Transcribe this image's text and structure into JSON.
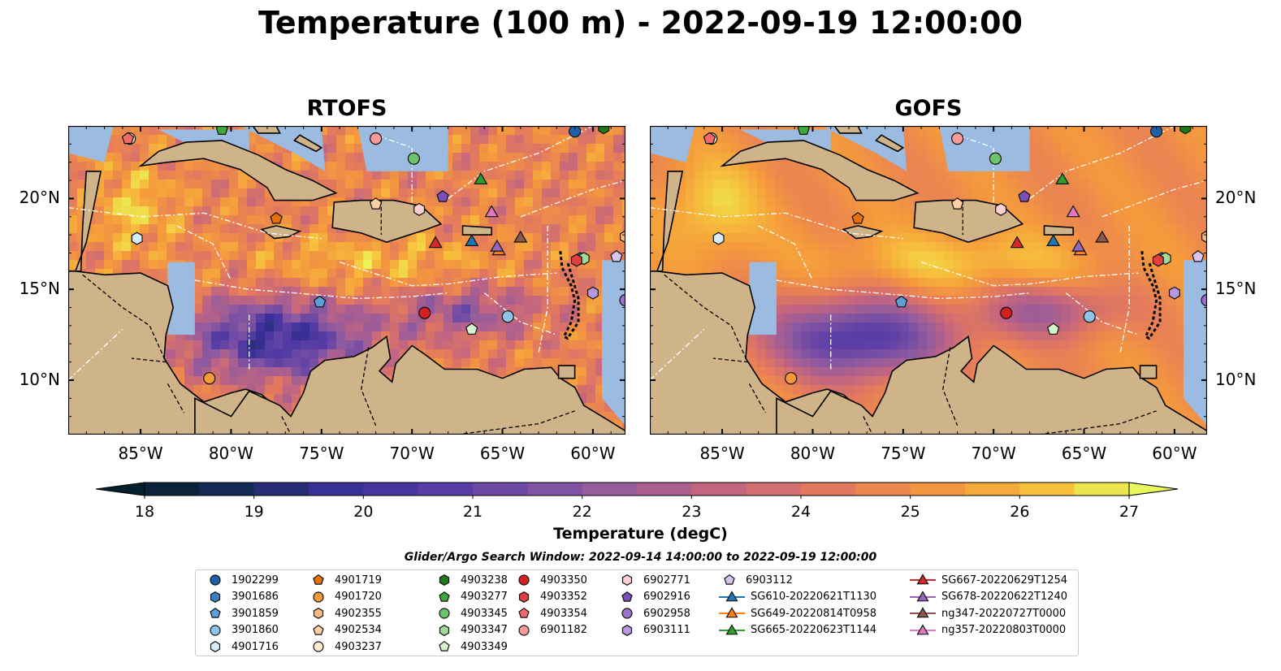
{
  "title": "Temperature (100 m) - 2022-09-19 12:00:00",
  "panels": [
    {
      "title": "RTOFS",
      "variant": "rtofs"
    },
    {
      "title": "GOFS",
      "variant": "gofs"
    }
  ],
  "map_extent": {
    "lon_min": -89,
    "lon_max": -58.2,
    "lat_min": 7,
    "lat_max": 24
  },
  "x_ticks": [
    {
      "value": -85,
      "label": "85°W"
    },
    {
      "value": -80,
      "label": "80°W"
    },
    {
      "value": -75,
      "label": "75°W"
    },
    {
      "value": -70,
      "label": "70°W"
    },
    {
      "value": -65,
      "label": "65°W"
    },
    {
      "value": -60,
      "label": "60°W"
    }
  ],
  "y_ticks": [
    {
      "value": 20,
      "label": "20°N"
    },
    {
      "value": 15,
      "label": "15°N"
    },
    {
      "value": 10,
      "label": "10°N"
    }
  ],
  "colorbar": {
    "label": "Temperature (degC)",
    "min": 18,
    "max": 27,
    "extend": "both",
    "tick_labels": [
      "18",
      "19",
      "20",
      "21",
      "22",
      "23",
      "24",
      "25",
      "26",
      "27"
    ]
  },
  "search_window": "Glider/Argo Search Window: 2022-09-14 14:00:00 to 2022-09-19 12:00:00",
  "legend": [
    {
      "label": "1902299",
      "marker": "circle",
      "color": "#1f5fa8"
    },
    {
      "label": "3901686",
      "marker": "hexagon",
      "color": "#3a7fc0"
    },
    {
      "label": "3901859",
      "marker": "pentagon",
      "color": "#5a9fd8"
    },
    {
      "label": "3901860",
      "marker": "circle",
      "color": "#8fc3e8"
    },
    {
      "label": "4901716",
      "marker": "hexagon",
      "color": "#d6ecf8"
    },
    {
      "label": "4901719",
      "marker": "pentagon",
      "color": "#e8700a"
    },
    {
      "label": "4901720",
      "marker": "circle",
      "color": "#f59a3c"
    },
    {
      "label": "4902355",
      "marker": "hexagon",
      "color": "#f9bc80"
    },
    {
      "label": "4902534",
      "marker": "pentagon",
      "color": "#fcd0a0"
    },
    {
      "label": "4903237",
      "marker": "circle",
      "color": "#fde8cc"
    },
    {
      "label": "4903238",
      "marker": "hexagon",
      "color": "#1e7a1e"
    },
    {
      "label": "4903277",
      "marker": "pentagon",
      "color": "#3ea83e"
    },
    {
      "label": "4903345",
      "marker": "circle",
      "color": "#6cc46c"
    },
    {
      "label": "4903347",
      "marker": "hexagon",
      "color": "#a0dc98"
    },
    {
      "label": "4903349",
      "marker": "pentagon",
      "color": "#d4f4cc"
    },
    {
      "label": "4903350",
      "marker": "circle",
      "color": "#d62020"
    },
    {
      "label": "4903352",
      "marker": "hexagon",
      "color": "#e04040"
    },
    {
      "label": "4903354",
      "marker": "pentagon",
      "color": "#f06a6a"
    },
    {
      "label": "6901182",
      "marker": "circle",
      "color": "#f89a9a"
    },
    {
      "label": "6902771",
      "marker": "hexagon",
      "color": "#fcd0d0"
    },
    {
      "label": "6902916",
      "marker": "pentagon",
      "color": "#7a4fb8"
    },
    {
      "label": "6902958",
      "marker": "circle",
      "color": "#9a72cc"
    },
    {
      "label": "6903111",
      "marker": "hexagon",
      "color": "#b898dc"
    },
    {
      "label": "6903112",
      "marker": "pentagon",
      "color": "#d8c4f0"
    },
    {
      "label": "SG610-20220621T1130",
      "marker": "triangle",
      "color": "#1f77b4"
    },
    {
      "label": "SG649-20220814T0958",
      "marker": "triangle",
      "color": "#ff7f0e"
    },
    {
      "label": "SG665-20220623T1144",
      "marker": "triangle",
      "color": "#2ca02c"
    },
    {
      "label": "SG667-20220629T1254",
      "marker": "triangle",
      "color": "#d62728"
    },
    {
      "label": "SG678-20220622T1240",
      "marker": "triangle",
      "color": "#9467bd"
    },
    {
      "label": "ng347-20220727T0000",
      "marker": "triangle",
      "color": "#8c564b"
    },
    {
      "label": "ng357-20220803T0000",
      "marker": "triangle",
      "color": "#e377c2"
    }
  ],
  "observations": [
    {
      "id": "1902299",
      "lon": -61,
      "lat": 23.7
    },
    {
      "id": "3901686",
      "lon": -60.7,
      "lat": 16.7
    },
    {
      "id": "3901859",
      "lon": -75.1,
      "lat": 14.3
    },
    {
      "id": "3901860",
      "lon": -64.7,
      "lat": 13.5
    },
    {
      "id": "4901716",
      "lon": -85.2,
      "lat": 17.8
    },
    {
      "id": "4901719",
      "lon": -77.5,
      "lat": 18.9
    },
    {
      "id": "4901720",
      "lon": -81.2,
      "lat": 10.1
    },
    {
      "id": "4902355",
      "lon": -58.2,
      "lat": 17.9
    },
    {
      "id": "4902534",
      "lon": -72.0,
      "lat": 19.7
    },
    {
      "id": "4903237",
      "lon": -85.6,
      "lat": 23.3
    },
    {
      "id": "4903238",
      "lon": -59.4,
      "lat": 23.9
    },
    {
      "id": "4903277",
      "lon": -80.5,
      "lat": 23.8
    },
    {
      "id": "4903345",
      "lon": -69.9,
      "lat": 22.2
    },
    {
      "id": "4903347",
      "lon": -60.5,
      "lat": 16.7
    },
    {
      "id": "4903349",
      "lon": -66.7,
      "lat": 12.8
    },
    {
      "id": "4903350",
      "lon": -69.3,
      "lat": 13.7
    },
    {
      "id": "4903352",
      "lon": -60.9,
      "lat": 16.6
    },
    {
      "id": "4903354",
      "lon": -85.7,
      "lat": 23.3
    },
    {
      "id": "6901182",
      "lon": -72.0,
      "lat": 23.3
    },
    {
      "id": "6902771",
      "lon": -69.6,
      "lat": 19.4
    },
    {
      "id": "6902916",
      "lon": -68.3,
      "lat": 20.1
    },
    {
      "id": "6902958",
      "lon": -58.2,
      "lat": 14.4
    },
    {
      "id": "6903111",
      "lon": -60.0,
      "lat": 14.8
    },
    {
      "id": "6903112",
      "lon": -58.7,
      "lat": 16.8
    },
    {
      "id": "SG610-20220621T1130",
      "lon": -66.7,
      "lat": 17.6
    },
    {
      "id": "SG649-20220814T0958",
      "lon": -65.2,
      "lat": 17.1
    },
    {
      "id": "SG665-20220623T1144",
      "lon": -66.2,
      "lat": 21.0
    },
    {
      "id": "SG667-20220629T1254",
      "lon": -68.7,
      "lat": 17.5
    },
    {
      "id": "SG678-20220622T1240",
      "lon": -65.3,
      "lat": 17.3
    },
    {
      "id": "ng347-20220727T0000",
      "lon": -64.0,
      "lat": 17.8
    },
    {
      "id": "ng357-20220803T0000",
      "lon": -65.6,
      "lat": 19.2
    }
  ],
  "colors": {
    "ocean_line": "#ffffff",
    "land": "#cfb48a",
    "shelf": "#9bbbe0",
    "pacific": "#062a3a"
  }
}
